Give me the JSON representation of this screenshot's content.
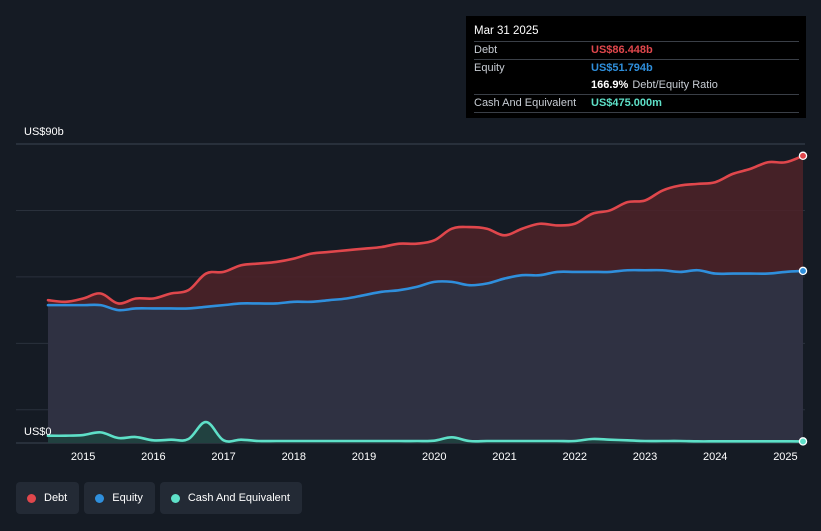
{
  "chart_data": {
    "type": "area",
    "title": "",
    "xlabel": "",
    "ylabel": "",
    "y_axis_labels": {
      "top": "US$90b",
      "bottom": "US$0"
    },
    "ylim": [
      0,
      90
    ],
    "xlim": [
      2014.5,
      2025.25
    ],
    "x_tick_labels": [
      "2015",
      "2016",
      "2017",
      "2018",
      "2019",
      "2020",
      "2021",
      "2022",
      "2023",
      "2024",
      "2025"
    ],
    "x_ticks": [
      2015,
      2016,
      2017,
      2018,
      2019,
      2020,
      2021,
      2022,
      2023,
      2024,
      2025
    ],
    "grid": true,
    "legend_placement": "bottom-left",
    "series": [
      {
        "name": "Debt",
        "color": "#e0474c",
        "fill": "#4e2228",
        "points": [
          [
            2014.5,
            43
          ],
          [
            2014.75,
            42.5
          ],
          [
            2015.0,
            43.5
          ],
          [
            2015.25,
            45
          ],
          [
            2015.5,
            42
          ],
          [
            2015.75,
            43.5
          ],
          [
            2016.0,
            43.5
          ],
          [
            2016.25,
            45
          ],
          [
            2016.5,
            46
          ],
          [
            2016.75,
            51
          ],
          [
            2017.0,
            51.5
          ],
          [
            2017.25,
            53.5
          ],
          [
            2017.5,
            54
          ],
          [
            2017.75,
            54.5
          ],
          [
            2018.0,
            55.5
          ],
          [
            2018.25,
            57
          ],
          [
            2018.5,
            57.5
          ],
          [
            2018.75,
            58
          ],
          [
            2019.0,
            58.5
          ],
          [
            2019.25,
            59
          ],
          [
            2019.5,
            60
          ],
          [
            2019.75,
            60
          ],
          [
            2020.0,
            61
          ],
          [
            2020.25,
            64.5
          ],
          [
            2020.5,
            65
          ],
          [
            2020.75,
            64.5
          ],
          [
            2021.0,
            62.5
          ],
          [
            2021.25,
            64.5
          ],
          [
            2021.5,
            66
          ],
          [
            2021.75,
            65.5
          ],
          [
            2022.0,
            66
          ],
          [
            2022.25,
            69
          ],
          [
            2022.5,
            70
          ],
          [
            2022.75,
            72.5
          ],
          [
            2023.0,
            73
          ],
          [
            2023.25,
            76
          ],
          [
            2023.5,
            77.5
          ],
          [
            2023.75,
            78
          ],
          [
            2024.0,
            78.5
          ],
          [
            2024.25,
            81
          ],
          [
            2024.5,
            82.5
          ],
          [
            2024.75,
            84.5
          ],
          [
            2025.0,
            84.5
          ],
          [
            2025.25,
            86.448
          ]
        ]
      },
      {
        "name": "Equity",
        "color": "#2f8fdc",
        "fill": "#2b3448",
        "points": [
          [
            2014.5,
            41.5
          ],
          [
            2014.75,
            41.5
          ],
          [
            2015.0,
            41.5
          ],
          [
            2015.25,
            41.5
          ],
          [
            2015.5,
            40
          ],
          [
            2015.75,
            40.5
          ],
          [
            2016.0,
            40.5
          ],
          [
            2016.25,
            40.5
          ],
          [
            2016.5,
            40.5
          ],
          [
            2016.75,
            41
          ],
          [
            2017.0,
            41.5
          ],
          [
            2017.25,
            42
          ],
          [
            2017.5,
            42
          ],
          [
            2017.75,
            42
          ],
          [
            2018.0,
            42.5
          ],
          [
            2018.25,
            42.5
          ],
          [
            2018.5,
            43
          ],
          [
            2018.75,
            43.5
          ],
          [
            2019.0,
            44.5
          ],
          [
            2019.25,
            45.5
          ],
          [
            2019.5,
            46
          ],
          [
            2019.75,
            47
          ],
          [
            2020.0,
            48.5
          ],
          [
            2020.25,
            48.5
          ],
          [
            2020.5,
            47.5
          ],
          [
            2020.75,
            48
          ],
          [
            2021.0,
            49.5
          ],
          [
            2021.25,
            50.5
          ],
          [
            2021.5,
            50.5
          ],
          [
            2021.75,
            51.5
          ],
          [
            2022.0,
            51.5
          ],
          [
            2022.25,
            51.5
          ],
          [
            2022.5,
            51.5
          ],
          [
            2022.75,
            52
          ],
          [
            2023.0,
            52
          ],
          [
            2023.25,
            52
          ],
          [
            2023.5,
            51.5
          ],
          [
            2023.75,
            52
          ],
          [
            2024.0,
            51
          ],
          [
            2024.25,
            51
          ],
          [
            2024.5,
            51
          ],
          [
            2024.75,
            51
          ],
          [
            2025.0,
            51.5
          ],
          [
            2025.25,
            51.794
          ]
        ]
      },
      {
        "name": "Cash And Equivalent",
        "color": "#5ee0c8",
        "fill": "#1f4440",
        "points": [
          [
            2014.5,
            2.2
          ],
          [
            2014.75,
            2.2
          ],
          [
            2015.0,
            2.4
          ],
          [
            2015.25,
            3.2
          ],
          [
            2015.5,
            1.5
          ],
          [
            2015.75,
            1.8
          ],
          [
            2016.0,
            0.8
          ],
          [
            2016.25,
            1.0
          ],
          [
            2016.5,
            1.2
          ],
          [
            2016.75,
            6.3
          ],
          [
            2017.0,
            0.8
          ],
          [
            2017.25,
            1.0
          ],
          [
            2017.5,
            0.6
          ],
          [
            2017.75,
            0.6
          ],
          [
            2018.0,
            0.6
          ],
          [
            2018.25,
            0.6
          ],
          [
            2018.5,
            0.6
          ],
          [
            2018.75,
            0.6
          ],
          [
            2019.0,
            0.6
          ],
          [
            2019.25,
            0.6
          ],
          [
            2019.5,
            0.6
          ],
          [
            2019.75,
            0.6
          ],
          [
            2020.0,
            0.7
          ],
          [
            2020.25,
            1.7
          ],
          [
            2020.5,
            0.6
          ],
          [
            2020.75,
            0.6
          ],
          [
            2021.0,
            0.6
          ],
          [
            2021.25,
            0.6
          ],
          [
            2021.5,
            0.6
          ],
          [
            2021.75,
            0.6
          ],
          [
            2022.0,
            0.6
          ],
          [
            2022.25,
            1.2
          ],
          [
            2022.5,
            1.0
          ],
          [
            2022.75,
            0.8
          ],
          [
            2023.0,
            0.6
          ],
          [
            2023.25,
            0.6
          ],
          [
            2023.5,
            0.6
          ],
          [
            2023.75,
            0.5
          ],
          [
            2024.0,
            0.5
          ],
          [
            2024.25,
            0.5
          ],
          [
            2024.5,
            0.5
          ],
          [
            2024.75,
            0.5
          ],
          [
            2025.0,
            0.5
          ],
          [
            2025.25,
            0.475
          ]
        ]
      }
    ],
    "tooltip": {
      "date": "Mar 31 2025",
      "rows": [
        {
          "label": "Debt",
          "value": "US$86.448b",
          "color": "#e0474c"
        },
        {
          "label": "Equity",
          "value": "US$51.794b",
          "color": "#2f8fdc"
        },
        {
          "label": "",
          "value": "166.9%",
          "suffix": "Debt/Equity Ratio",
          "color": "#ffffff"
        },
        {
          "label": "Cash And Equivalent",
          "value": "US$475.000m",
          "color": "#5ee0c8"
        }
      ]
    }
  },
  "legend": {
    "items": [
      {
        "label": "Debt",
        "color": "#e0474c"
      },
      {
        "label": "Equity",
        "color": "#2f8fdc"
      },
      {
        "label": "Cash And Equivalent",
        "color": "#5ee0c8"
      }
    ]
  }
}
